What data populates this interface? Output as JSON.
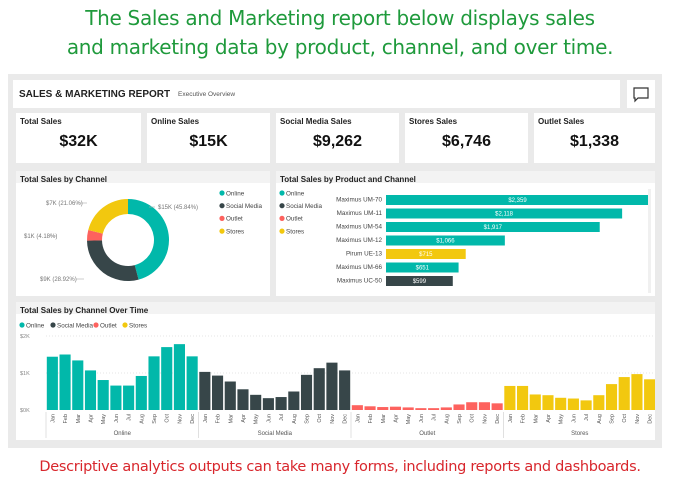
{
  "caption_top": [
    "The Sales and Marketing report below displays sales",
    "and marketing data by product, channel, and over time."
  ],
  "caption_bottom": "Descriptive analytics outputs can take many forms, including reports and dashboards.",
  "header": {
    "title": "SALES & MARKETING REPORT",
    "subtitle": "Executive Overview",
    "comment_icon": "comment-icon"
  },
  "kpis": [
    {
      "label": "Total Sales",
      "value": "$32K"
    },
    {
      "label": "Online Sales",
      "value": "$15K"
    },
    {
      "label": "Social Media Sales",
      "value": "$9,262"
    },
    {
      "label": "Stores Sales",
      "value": "$6,746"
    },
    {
      "label": "Outlet Sales",
      "value": "$1,338"
    }
  ],
  "colors": {
    "Online": "#01b8aa",
    "Social Media": "#374649",
    "Outlet": "#fd625e",
    "Stores": "#f2c80f"
  },
  "chart_data": [
    {
      "type": "pie",
      "title": "Total Sales by Channel",
      "legend": [
        "Online",
        "Social Media",
        "Outlet",
        "Stores"
      ],
      "legend_position": "right",
      "slices": [
        {
          "name": "Online",
          "percent": 45.84,
          "label": "$15K (45.84%)"
        },
        {
          "name": "Social Media",
          "percent": 28.92,
          "label": "$9K (28.92%)"
        },
        {
          "name": "Outlet",
          "percent": 4.18,
          "label": "$1K (4.18%)"
        },
        {
          "name": "Stores",
          "percent": 21.06,
          "label": "$7K (21.06%)"
        }
      ]
    },
    {
      "type": "bar",
      "title": "Total Sales by Product and Channel",
      "legend": [
        "Online",
        "Social Media",
        "Outlet",
        "Stores"
      ],
      "legend_position": "left",
      "orientation": "horizontal",
      "categories": [
        "Maximus UM-70",
        "Maximus UM-11",
        "Maximus UM-54",
        "Maximus UM-12",
        "Pirum UE-13",
        "Maximus UM-66",
        "Maximus UC-50"
      ],
      "values": [
        2359,
        2118,
        1917,
        1066,
        715,
        651,
        599
      ],
      "labels": [
        "$2,359",
        "$2,118",
        "$1,917",
        "$1,066",
        "$715",
        "$651",
        "$599"
      ],
      "channel": [
        "Online",
        "Online",
        "Online",
        "Online",
        "Stores",
        "Online",
        "Social Media"
      ]
    },
    {
      "type": "bar",
      "title": "Total Sales by Channel Over Time",
      "legend": [
        "Online",
        "Social Media",
        "Outlet",
        "Stores"
      ],
      "legend_position": "top-left",
      "grid": true,
      "yticks": [
        "$0K",
        "$1K",
        "$2K"
      ],
      "ylim": [
        0,
        2000
      ],
      "months": [
        "Jan",
        "Feb",
        "Mar",
        "Apr",
        "May",
        "Jun",
        "Jul",
        "Aug",
        "Sep",
        "Oct",
        "Nov",
        "Dec"
      ],
      "series": [
        {
          "name": "Online",
          "values": [
            1440,
            1500,
            1340,
            1070,
            810,
            660,
            660,
            920,
            1450,
            1700,
            1780,
            1450
          ]
        },
        {
          "name": "Social Media",
          "values": [
            1030,
            930,
            770,
            560,
            410,
            320,
            350,
            500,
            950,
            1130,
            1280,
            1070
          ]
        },
        {
          "name": "Outlet",
          "values": [
            130,
            100,
            80,
            90,
            70,
            50,
            50,
            70,
            150,
            210,
            210,
            180
          ]
        },
        {
          "name": "Stores",
          "values": [
            650,
            650,
            420,
            400,
            330,
            310,
            260,
            400,
            700,
            890,
            970,
            830
          ]
        }
      ]
    }
  ]
}
